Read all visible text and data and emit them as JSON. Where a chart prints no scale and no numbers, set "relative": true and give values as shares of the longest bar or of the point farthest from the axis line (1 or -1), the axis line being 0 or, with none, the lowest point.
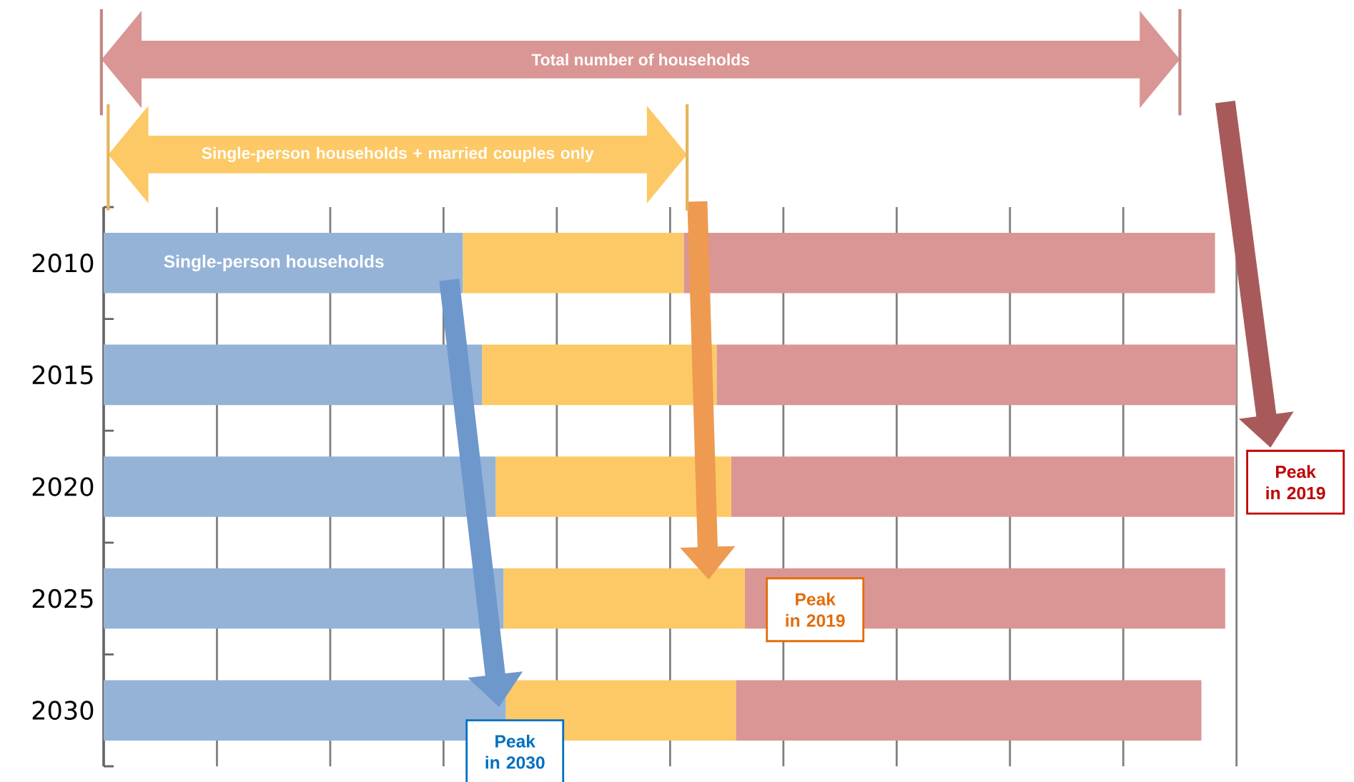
{
  "chart_data": {
    "type": "bar",
    "orientation": "horizontal",
    "stacked": true,
    "relative": true,
    "grid": "x",
    "categories": [
      "2010",
      "2015",
      "2020",
      "2025",
      "2030"
    ],
    "series": [
      {
        "name": "Single-person households",
        "color": "#95b3d7",
        "values": [
          0.317,
          0.334,
          0.346,
          0.353,
          0.355
        ]
      },
      {
        "color": "#fdc966",
        "values": [
          0.195,
          0.207,
          0.208,
          0.213,
          0.203
        ]
      },
      {
        "color": "#da9694",
        "values": [
          0.469,
          0.459,
          0.444,
          0.424,
          0.411
        ]
      }
    ],
    "annotations": [
      "Total number of households",
      "Single-person households + married couples only",
      "Peak in 2019",
      "Peak in 2019",
      "Peak in 2030"
    ]
  }
}
